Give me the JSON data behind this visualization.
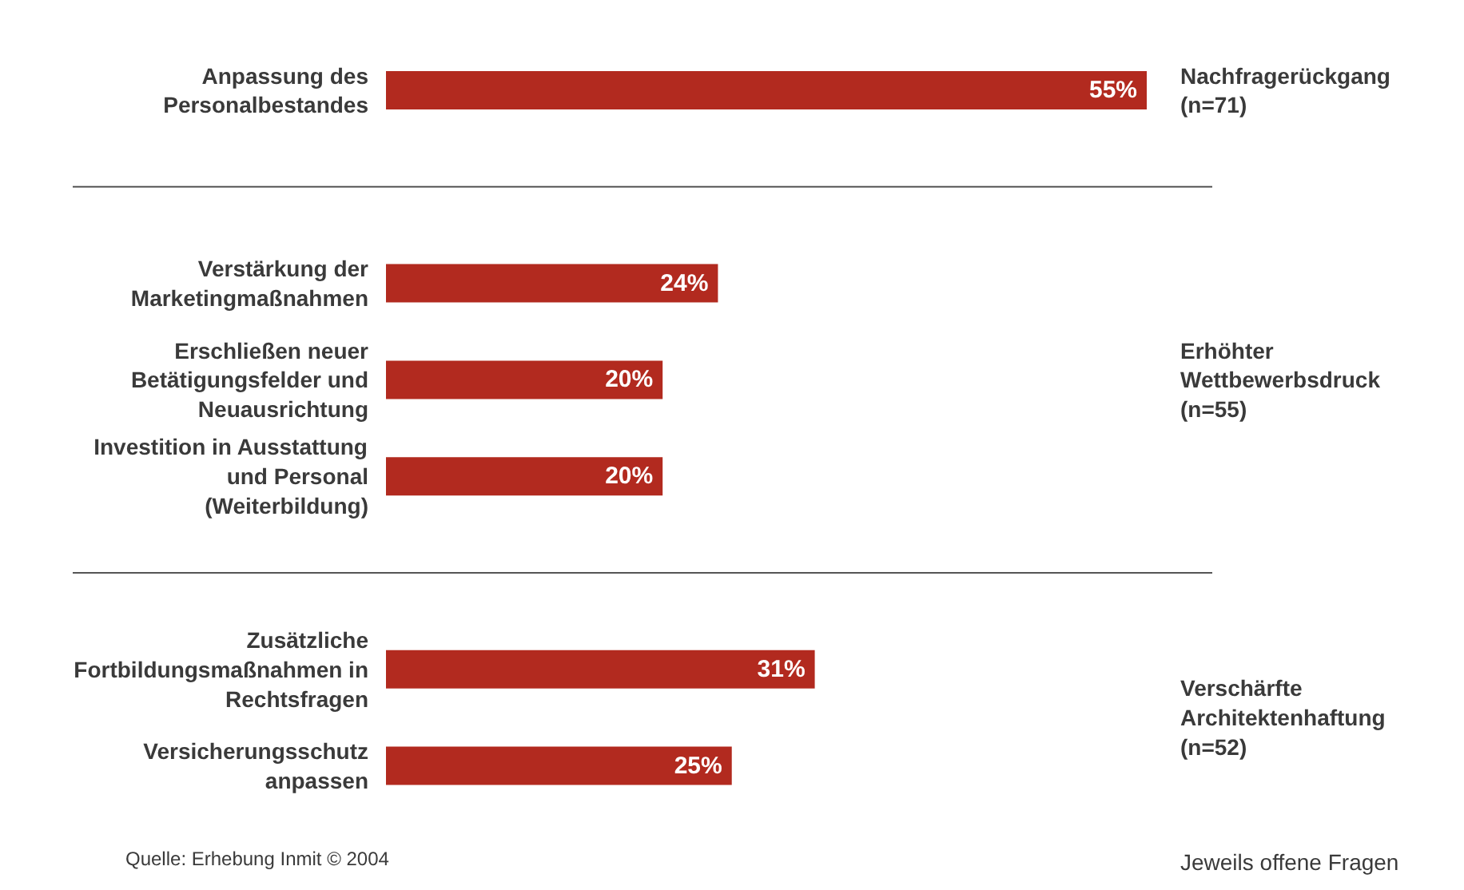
{
  "chart_data": {
    "type": "bar",
    "orientation": "horizontal",
    "categories": [
      "Anpassung des\nPersonalbestandes",
      null,
      "Verstärkung der\nMarketingmaßnahmen",
      "Erschließen neuer\nBetätigungsfelder und\nNeuausrichtung",
      "Investition in Ausstattung\nund Personal\n(Weiterbildung)",
      null,
      "Zusätzliche\nFortbildungsmaßnahmen in\nRechtsfragen",
      "Versicherungsschutz\nanpassen"
    ],
    "values": [
      55,
      null,
      24,
      20,
      20,
      null,
      31,
      25
    ],
    "value_labels": [
      "55%",
      null,
      "24%",
      "20%",
      "20%",
      null,
      "31%",
      "25%"
    ],
    "color": "#b22a1f",
    "annotations": [
      "Nachfragerückgang\n(n=71)",
      "Erhöhter\nWettbewerbsdruck\n(n=55)",
      "Verschärfte\nArchitektenhaftung\n(n=52)",
      "Quelle: Erhebung Inmit © 2004",
      "Jeweils offene Fragen"
    ]
  }
}
